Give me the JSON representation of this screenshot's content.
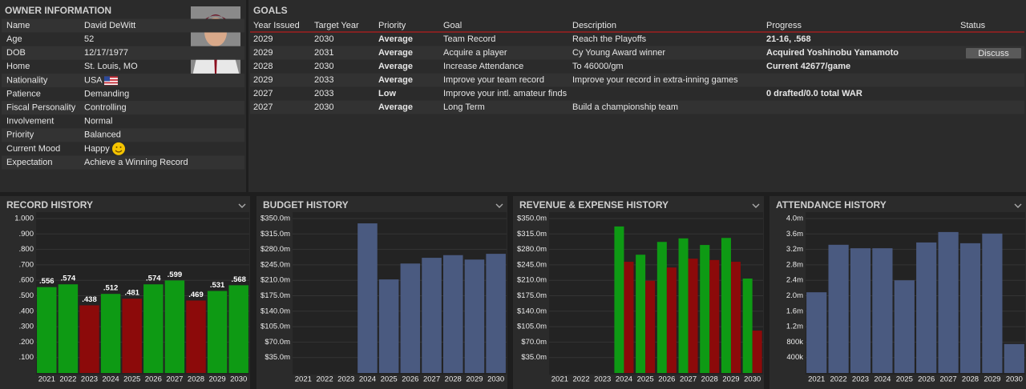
{
  "owner": {
    "title": "OWNER INFORMATION",
    "rows": [
      {
        "label": "Name",
        "value": "David DeWitt"
      },
      {
        "label": "Age",
        "value": "52"
      },
      {
        "label": "DOB",
        "value": "12/17/1977"
      },
      {
        "label": "Home",
        "value": "St. Louis, MO"
      },
      {
        "label": "Nationality",
        "value": "USA"
      },
      {
        "label": "Patience",
        "value": "Demanding",
        "color": "#f0962a"
      },
      {
        "label": "Fiscal Personality",
        "value": "Controlling",
        "color": "#f0962a"
      },
      {
        "label": "Involvement",
        "value": "Normal",
        "color": "#5cd62c"
      },
      {
        "label": "Priority",
        "value": "Balanced",
        "color": "#5cd62c"
      },
      {
        "label": "Current Mood",
        "value": "Happy"
      },
      {
        "label": "Expectation",
        "value": "Achieve a Winning Record",
        "color": "#1cc9a6"
      }
    ]
  },
  "goals": {
    "title": "GOALS",
    "columns": [
      "Year Issued",
      "Target Year",
      "Priority",
      "Goal",
      "Description",
      "Progress",
      "Status"
    ],
    "rows": [
      {
        "cells": [
          "2029",
          "2030",
          "Average",
          "Team Record",
          "Reach the Playoffs",
          "21-16, .568"
        ],
        "priority_color": "#5cd62c",
        "progress_color": "#1cc9a6"
      },
      {
        "cells": [
          "2029",
          "2031",
          "Average",
          "Acquire a player",
          "Cy Young Award winner",
          "Acquired Yoshinobu Yamamoto"
        ],
        "priority_color": "#5cd62c",
        "progress_color": "#3aa0f0",
        "status": "Discuss"
      },
      {
        "cells": [
          "2028",
          "2030",
          "Average",
          "Increase Attendance",
          "To 46000/gm",
          "Current 42677/game"
        ],
        "priority_color": "#5cd62c",
        "progress_color": "#f0d000"
      },
      {
        "cells": [
          "2029",
          "2033",
          "Average",
          "Improve your team record",
          "Improve your record in extra-inning games",
          null
        ],
        "priority_color": "#5cd62c"
      },
      {
        "cells": [
          "2027",
          "2033",
          "Low",
          "Improve your intl. amateur finds",
          null,
          "0 drafted/0.0 total WAR"
        ],
        "priority_color": "#f0962a",
        "progress_color": "#ee4848"
      },
      {
        "cells": [
          "2027",
          "2030",
          "Average",
          "Long Term",
          "Build a championship team",
          null
        ],
        "priority_color": "#5cd62c"
      }
    ]
  },
  "chart_data": [
    {
      "type": "bar",
      "title": "RECORD HISTORY",
      "categories": [
        "2021",
        "2022",
        "2023",
        "2024",
        "2025",
        "2026",
        "2027",
        "2028",
        "2029",
        "2030"
      ],
      "values": [
        0.556,
        0.574,
        0.438,
        0.512,
        0.481,
        0.574,
        0.599,
        0.469,
        0.531,
        0.568
      ],
      "value_labels": [
        ".556",
        ".574",
        ".438",
        ".512",
        ".481",
        ".574",
        ".599",
        ".469",
        ".531",
        ".568"
      ],
      "colors": [
        "#0e9a14",
        "#0e9a14",
        "#8c0a0a",
        "#0e9a14",
        "#8c0a0a",
        "#0e9a14",
        "#0e9a14",
        "#8c0a0a",
        "#0e9a14",
        "#0e9a14"
      ],
      "ylim": [
        0,
        1
      ],
      "yticks": [
        {
          "value": 0.1,
          "label": ".100"
        },
        {
          "value": 0.2,
          "label": ".200"
        },
        {
          "value": 0.3,
          "label": ".300"
        },
        {
          "value": 0.4,
          "label": ".400"
        },
        {
          "value": 0.5,
          "label": ".500"
        },
        {
          "value": 0.6,
          "label": ".600"
        },
        {
          "value": 0.7,
          "label": ".700"
        },
        {
          "value": 0.8,
          "label": ".800"
        },
        {
          "value": 0.9,
          "label": ".900"
        },
        {
          "value": 1,
          "label": "1.000"
        }
      ],
      "grid": true
    },
    {
      "type": "bar",
      "title": "BUDGET HISTORY",
      "categories": [
        "2021",
        "2022",
        "2023",
        "2024",
        "2025",
        "2026",
        "2027",
        "2028",
        "2029",
        "2030"
      ],
      "values": [
        null,
        null,
        null,
        339,
        212,
        248,
        261,
        267,
        257,
        270
      ],
      "color": "#4a5a80",
      "ylim": [
        0,
        350
      ],
      "yticks": [
        {
          "value": 35,
          "label": "$35.0m"
        },
        {
          "value": 70,
          "label": "$70.0m"
        },
        {
          "value": 105,
          "label": "$105.0m"
        },
        {
          "value": 140,
          "label": "$140.0m"
        },
        {
          "value": 175,
          "label": "$175.0m"
        },
        {
          "value": 210,
          "label": "$210.0m"
        },
        {
          "value": 245,
          "label": "$245.0m"
        },
        {
          "value": 280,
          "label": "$280.0m"
        },
        {
          "value": 315,
          "label": "$315.0m"
        },
        {
          "value": 350,
          "label": "$350.0m"
        }
      ],
      "grid": true
    },
    {
      "type": "bar",
      "title": "REVENUE & EXPENSE HISTORY",
      "categories": [
        "2021",
        "2022",
        "2023",
        "2024",
        "2025",
        "2026",
        "2027",
        "2028",
        "2029",
        "2030"
      ],
      "series": [
        {
          "color": "#0e9a14",
          "values": [
            null,
            null,
            null,
            332,
            268,
            297,
            305,
            290,
            306,
            214
          ]
        },
        {
          "color": "#8c0a0a",
          "values": [
            null,
            null,
            null,
            252,
            209,
            239,
            259,
            256,
            252,
            96
          ]
        }
      ],
      "ylim": [
        0,
        350
      ],
      "yticks": [
        {
          "value": 35,
          "label": "$35.0m"
        },
        {
          "value": 70,
          "label": "$70.0m"
        },
        {
          "value": 105,
          "label": "$105.0m"
        },
        {
          "value": 140,
          "label": "$140.0m"
        },
        {
          "value": 175,
          "label": "$175.0m"
        },
        {
          "value": 210,
          "label": "$210.0m"
        },
        {
          "value": 245,
          "label": "$245.0m"
        },
        {
          "value": 280,
          "label": "$280.0m"
        },
        {
          "value": 315,
          "label": "$315.0m"
        },
        {
          "value": 350,
          "label": "$350.0m"
        }
      ],
      "grid": true
    },
    {
      "type": "bar",
      "title": "ATTENDANCE HISTORY",
      "categories": [
        "2021",
        "2022",
        "2023",
        "2024",
        "2025",
        "2026",
        "2027",
        "2028",
        "2029",
        "2030"
      ],
      "values": [
        2090000,
        3320000,
        3230000,
        3230000,
        2400000,
        3380000,
        3650000,
        3360000,
        3610000,
        750000
      ],
      "color": "#4a5a80",
      "ylim": [
        0,
        4000000
      ],
      "yticks": [
        {
          "value": 400000,
          "label": "400k"
        },
        {
          "value": 800000,
          "label": "800k"
        },
        {
          "value": 1200000,
          "label": "1.2m"
        },
        {
          "value": 1600000,
          "label": "1.6m"
        },
        {
          "value": 2000000,
          "label": "2.0m"
        },
        {
          "value": 2400000,
          "label": "2.4m"
        },
        {
          "value": 2800000,
          "label": "2.8m"
        },
        {
          "value": 3200000,
          "label": "3.2m"
        },
        {
          "value": 3600000,
          "label": "3.6m"
        },
        {
          "value": 4000000,
          "label": "4.0m"
        }
      ],
      "grid": true
    }
  ]
}
